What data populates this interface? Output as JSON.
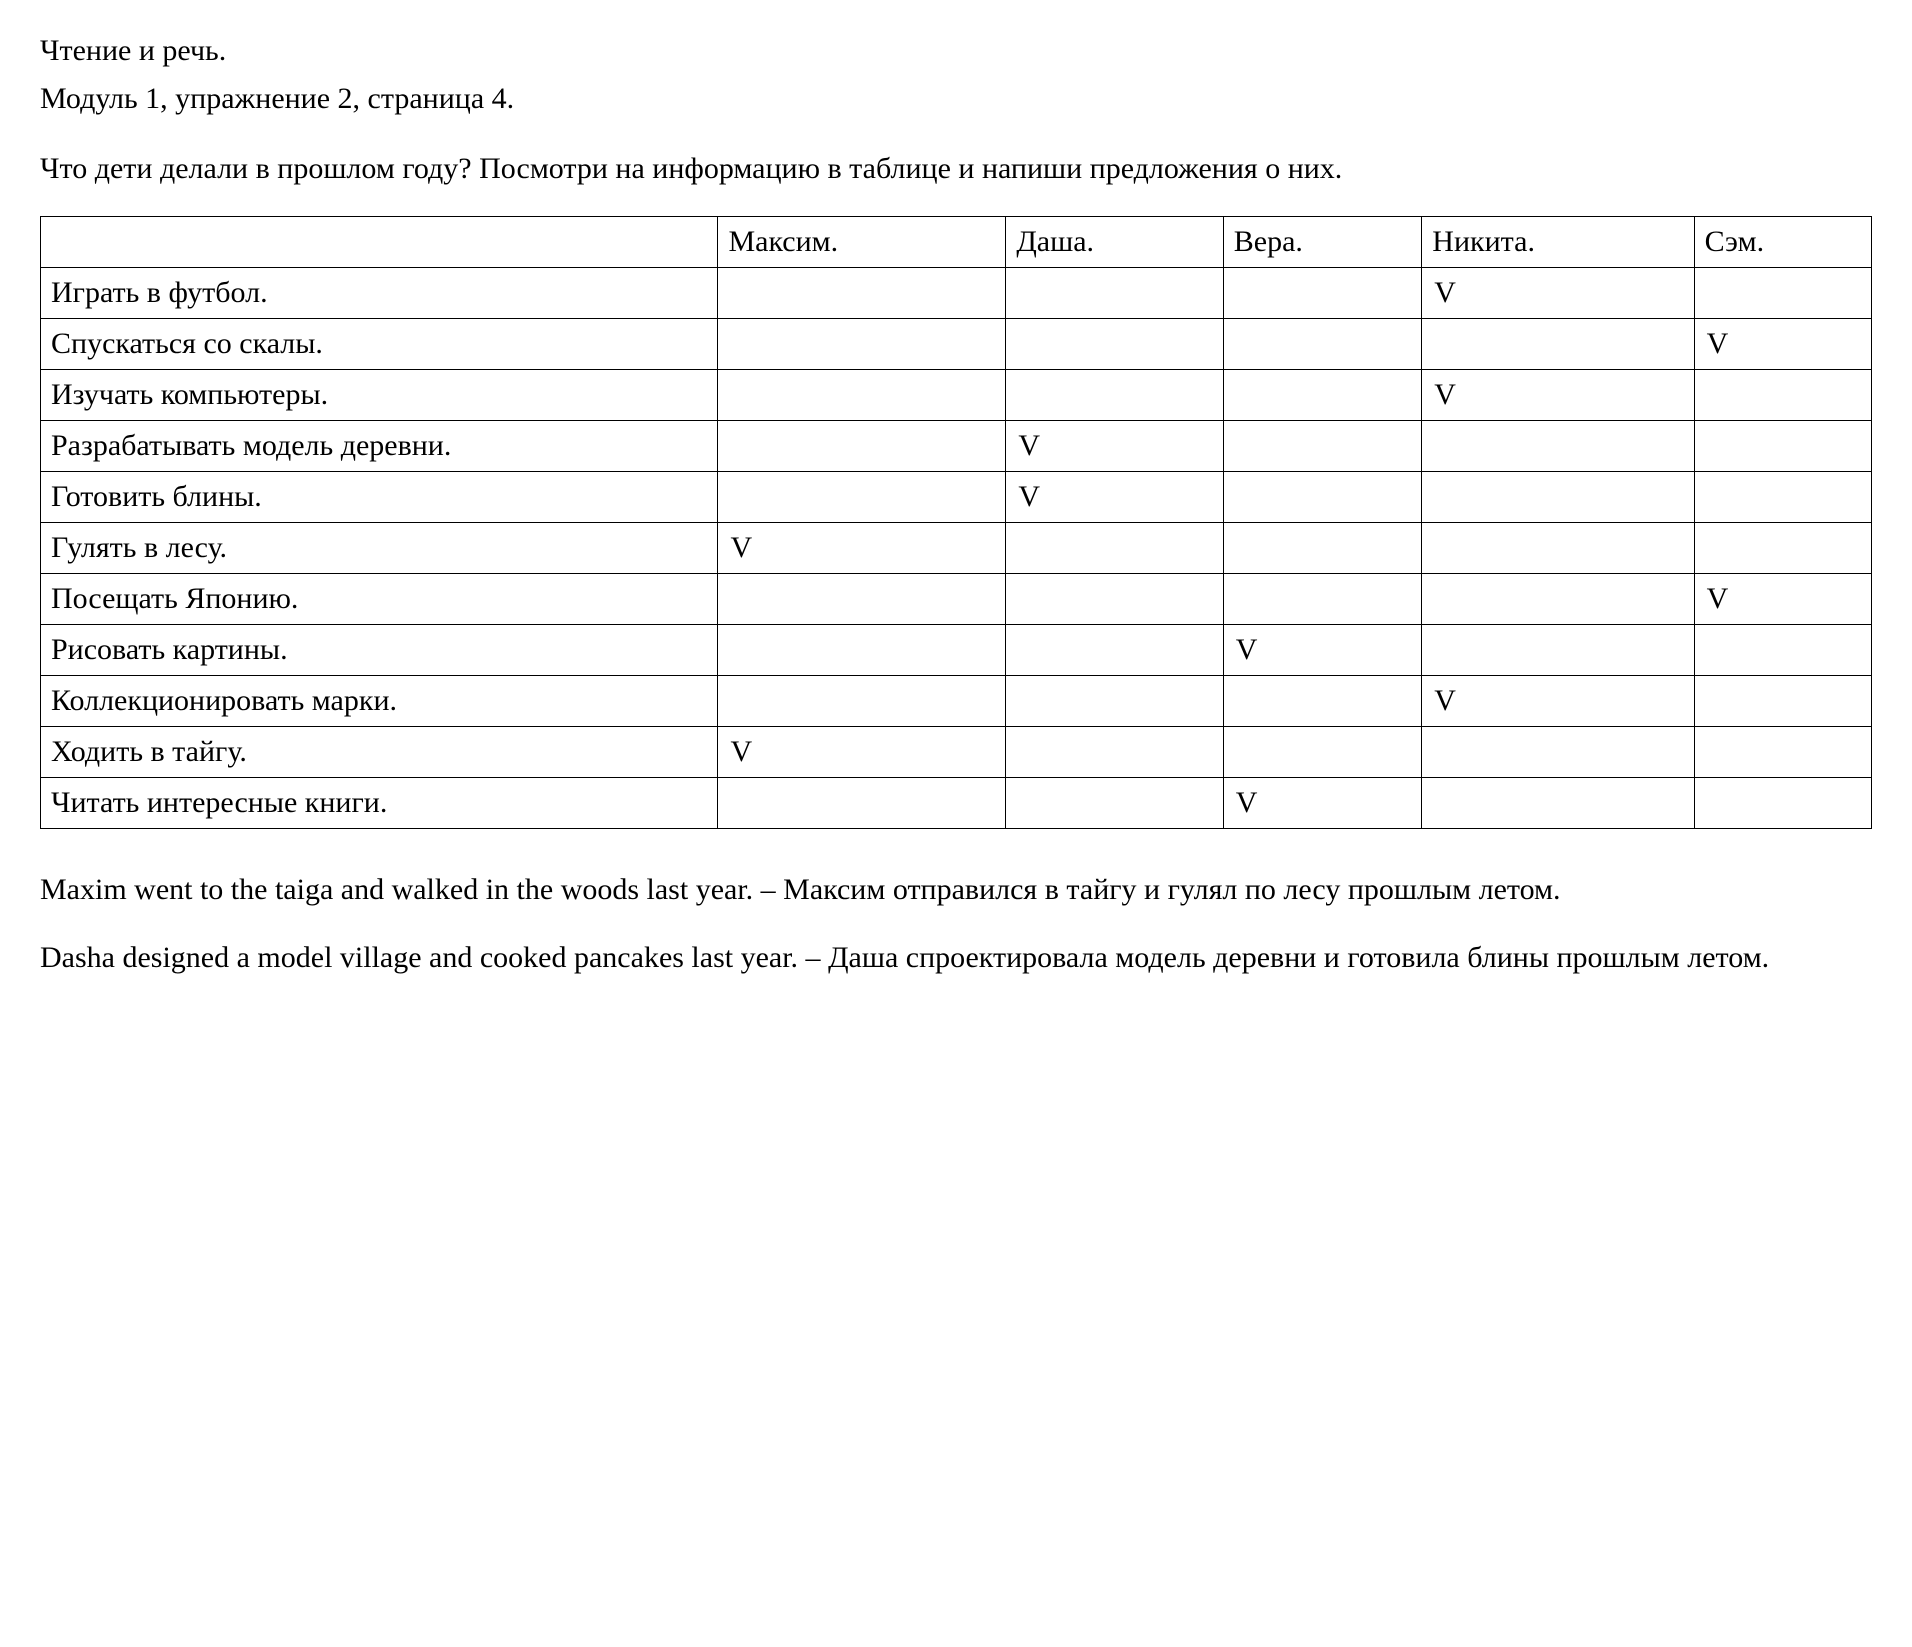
{
  "header": {
    "line1": "Чтение и речь.",
    "line2": "Модуль 1, упражнение 2, страница 4."
  },
  "question": {
    "text": "Что дети делали в прошлом году? Посмотри на информацию в таблице и напиши предложения о них."
  },
  "table": {
    "type": "table",
    "columns": [
      "",
      "Максим.",
      "Даша.",
      "Вера.",
      "Никита.",
      "Сэм."
    ],
    "activities": [
      "Играть в футбол.",
      "Спускаться со скалы.",
      "Изучать компьютеры.",
      "Разрабатывать модель деревни.",
      "Готовить блины.",
      "Гулять в лесу.",
      "Посещать Японию.",
      "Рисовать картины.",
      "Коллекционировать марки.",
      "Ходить в тайгу.",
      "Читать интересные книги."
    ],
    "checks": [
      [
        "",
        "",
        "",
        "V",
        ""
      ],
      [
        "",
        "",
        "",
        "",
        "V"
      ],
      [
        "",
        "",
        "",
        "V",
        ""
      ],
      [
        "",
        "V",
        "",
        "",
        ""
      ],
      [
        "",
        "V",
        "",
        "",
        ""
      ],
      [
        "V",
        "",
        "",
        "",
        ""
      ],
      [
        "",
        "",
        "",
        "",
        "V"
      ],
      [
        "",
        "",
        "V",
        "",
        ""
      ],
      [
        "",
        "",
        "",
        "V",
        ""
      ],
      [
        "V",
        "",
        "",
        "",
        ""
      ],
      [
        "",
        "",
        "V",
        "",
        ""
      ]
    ],
    "border_color": "#000000",
    "background_color": "#ffffff",
    "font_size": 30,
    "col_widths_pct": [
      37,
      14,
      11,
      10,
      14,
      10
    ]
  },
  "answers": [
    {
      "en": "Maxim went to the taiga and walked in the woods last year. – ",
      "ru": "Максим отправился в тайгу и гулял по лесу прошлым летом."
    },
    {
      "en": "Dasha designed a model village and cooked pancakes last year. – ",
      "ru": "Даша спроектировала модель деревни и готовила блины прошлым летом."
    }
  ],
  "style": {
    "font_family": "Times New Roman",
    "font_size": 30,
    "text_color": "#000000",
    "background_color": "#ffffff"
  }
}
